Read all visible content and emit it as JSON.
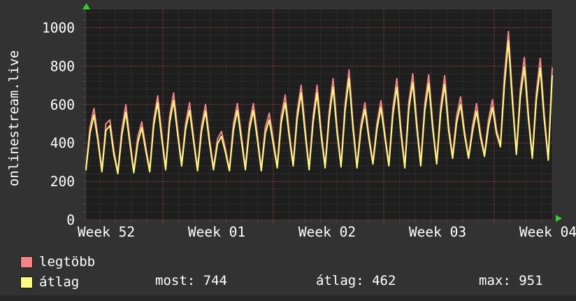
{
  "y_axis": {
    "title": "onlinestream.live",
    "ticks": [
      0,
      200,
      400,
      600,
      800,
      1000
    ]
  },
  "x_axis": {
    "labels": [
      "Week 52",
      "Week 01",
      "Week 02",
      "Week 03",
      "Week 04"
    ]
  },
  "legend": [
    {
      "label": "legtöbb",
      "color": "#f58585"
    },
    {
      "label": "átlag",
      "color": "#fbfb82"
    }
  ],
  "stats": [
    {
      "name": "most",
      "text": "most: 744"
    },
    {
      "name": "átlag",
      "text": "átlag: 462"
    },
    {
      "name": "max",
      "text": "max: 951"
    }
  ],
  "colors": {
    "page_bg": "#323232",
    "plot_bg": "#1e1e1e",
    "grid_minor": "#4c4c4c",
    "grid_major": "#a84848",
    "text": "#ffffff",
    "arrow": "#33cc33",
    "series_peak": "#f58585",
    "series_avg": "#fbfb82"
  },
  "chart_data": {
    "type": "line",
    "title": "onlinestream.live",
    "ylabel": "",
    "xlabel": "",
    "ylim": [
      0,
      1095
    ],
    "y_ticks": [
      0,
      200,
      400,
      600,
      800,
      1000
    ],
    "x_tick_labels": [
      "Week 52",
      "Week 01",
      "Week 02",
      "Week 03",
      "Week 04"
    ],
    "grid": "dotted, minor every 40 units / 1 day, major red every 200 units / 1 week",
    "legend_position": "bottom-left",
    "samples_per_day": 4,
    "summary": {
      "most": 744,
      "atlag": 462,
      "max": 951
    },
    "series": [
      {
        "name": "legtöbb",
        "color": "#f58585",
        "values": [
          270,
          480,
          580,
          430,
          260,
          500,
          520,
          360,
          250,
          470,
          600,
          420,
          255,
          430,
          510,
          380,
          260,
          520,
          645,
          450,
          270,
          540,
          660,
          470,
          290,
          500,
          610,
          430,
          265,
          490,
          600,
          420,
          270,
          420,
          460,
          370,
          265,
          500,
          605,
          440,
          270,
          500,
          605,
          445,
          265,
          480,
          555,
          420,
          280,
          540,
          650,
          460,
          290,
          560,
          700,
          480,
          270,
          540,
          700,
          465,
          280,
          560,
          735,
          480,
          285,
          600,
          780,
          500,
          280,
          500,
          610,
          440,
          300,
          500,
          620,
          450,
          290,
          580,
          735,
          480,
          280,
          610,
          760,
          510,
          290,
          600,
          755,
          500,
          300,
          590,
          750,
          490,
          330,
          540,
          640,
          460,
          330,
          490,
          605,
          450,
          340,
          520,
          625,
          470,
          390,
          750,
          980,
          650,
          350,
          680,
          845,
          560,
          330,
          660,
          840,
          550,
          320,
          790
        ]
      },
      {
        "name": "átlag",
        "color": "#fbfb82",
        "values": [
          260,
          450,
          545,
          410,
          250,
          465,
          490,
          340,
          240,
          440,
          560,
          400,
          245,
          400,
          480,
          360,
          250,
          490,
          610,
          425,
          260,
          505,
          620,
          445,
          280,
          470,
          570,
          410,
          255,
          460,
          565,
          400,
          260,
          395,
          435,
          350,
          255,
          465,
          570,
          415,
          260,
          465,
          570,
          420,
          255,
          450,
          520,
          395,
          270,
          505,
          610,
          435,
          280,
          525,
          660,
          450,
          260,
          505,
          660,
          440,
          270,
          525,
          690,
          455,
          275,
          565,
          735,
          475,
          270,
          470,
          575,
          420,
          290,
          470,
          585,
          430,
          280,
          545,
          690,
          455,
          270,
          575,
          715,
          480,
          280,
          565,
          710,
          475,
          290,
          555,
          705,
          465,
          320,
          505,
          600,
          440,
          320,
          460,
          565,
          430,
          330,
          485,
          585,
          450,
          380,
          700,
          930,
          615,
          340,
          640,
          795,
          530,
          320,
          620,
          790,
          520,
          310,
          750
        ]
      }
    ]
  }
}
